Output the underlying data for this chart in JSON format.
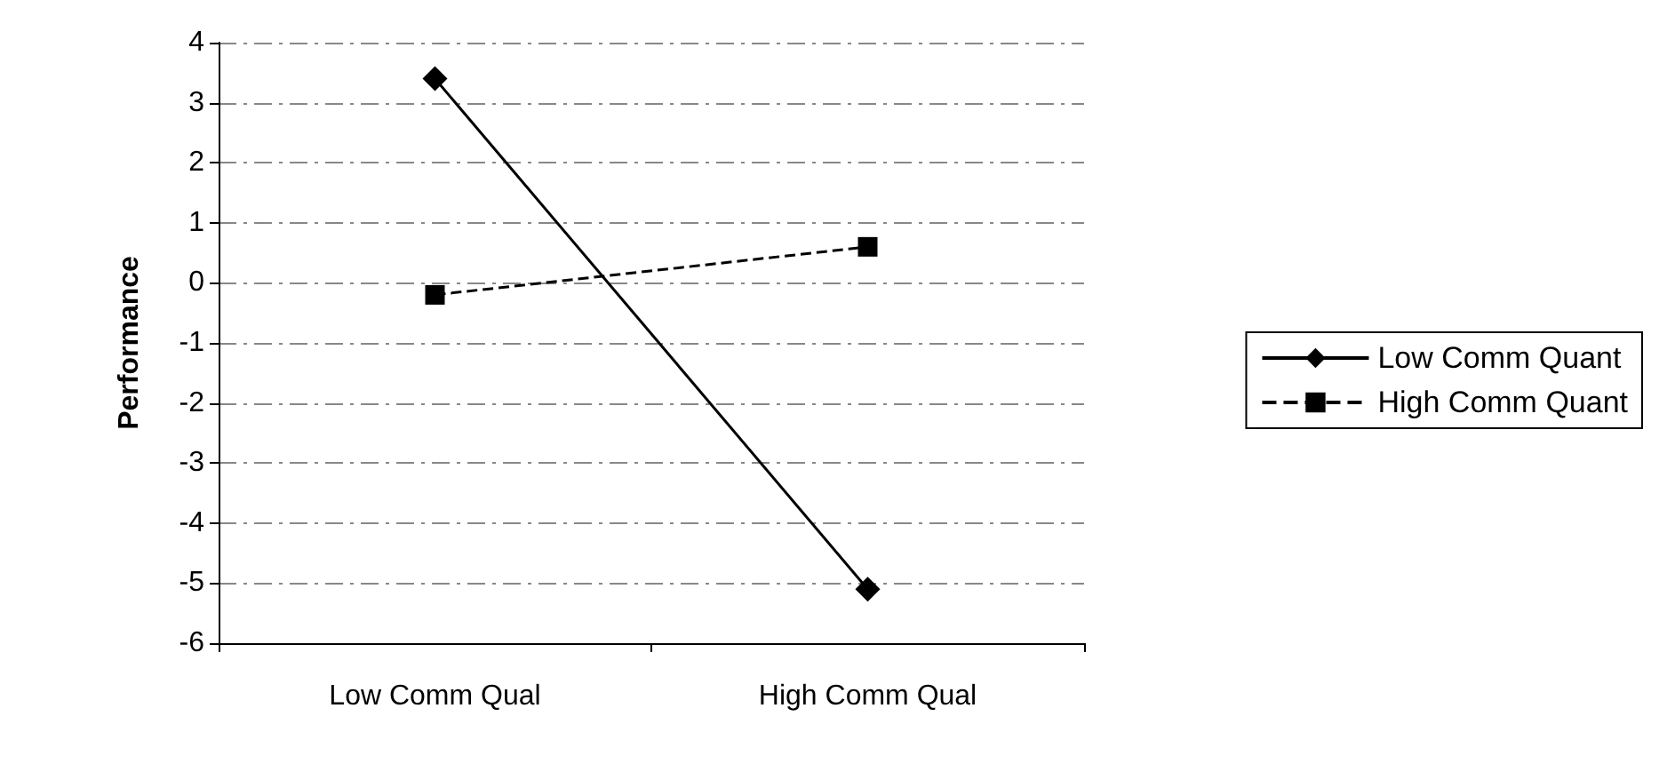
{
  "chart_data": {
    "type": "line",
    "ylabel": "Performance",
    "categories": [
      "Low Comm Qual",
      "High Comm Qual"
    ],
    "series": [
      {
        "name": "Low Comm Quant",
        "color": "#000000",
        "values": [
          3.4,
          -5.1
        ],
        "marker": "diamond",
        "line_style": "solid"
      },
      {
        "name": "High Comm Quant",
        "color": "#000000",
        "values": [
          -0.2,
          0.6
        ],
        "marker": "square",
        "line_style": "dashed"
      }
    ],
    "ylim": [
      -6,
      4
    ],
    "yticks": [
      -6,
      -5,
      -4,
      -3,
      -2,
      -1,
      0,
      1,
      2,
      3,
      4
    ],
    "grid": "y",
    "legend": "right"
  }
}
